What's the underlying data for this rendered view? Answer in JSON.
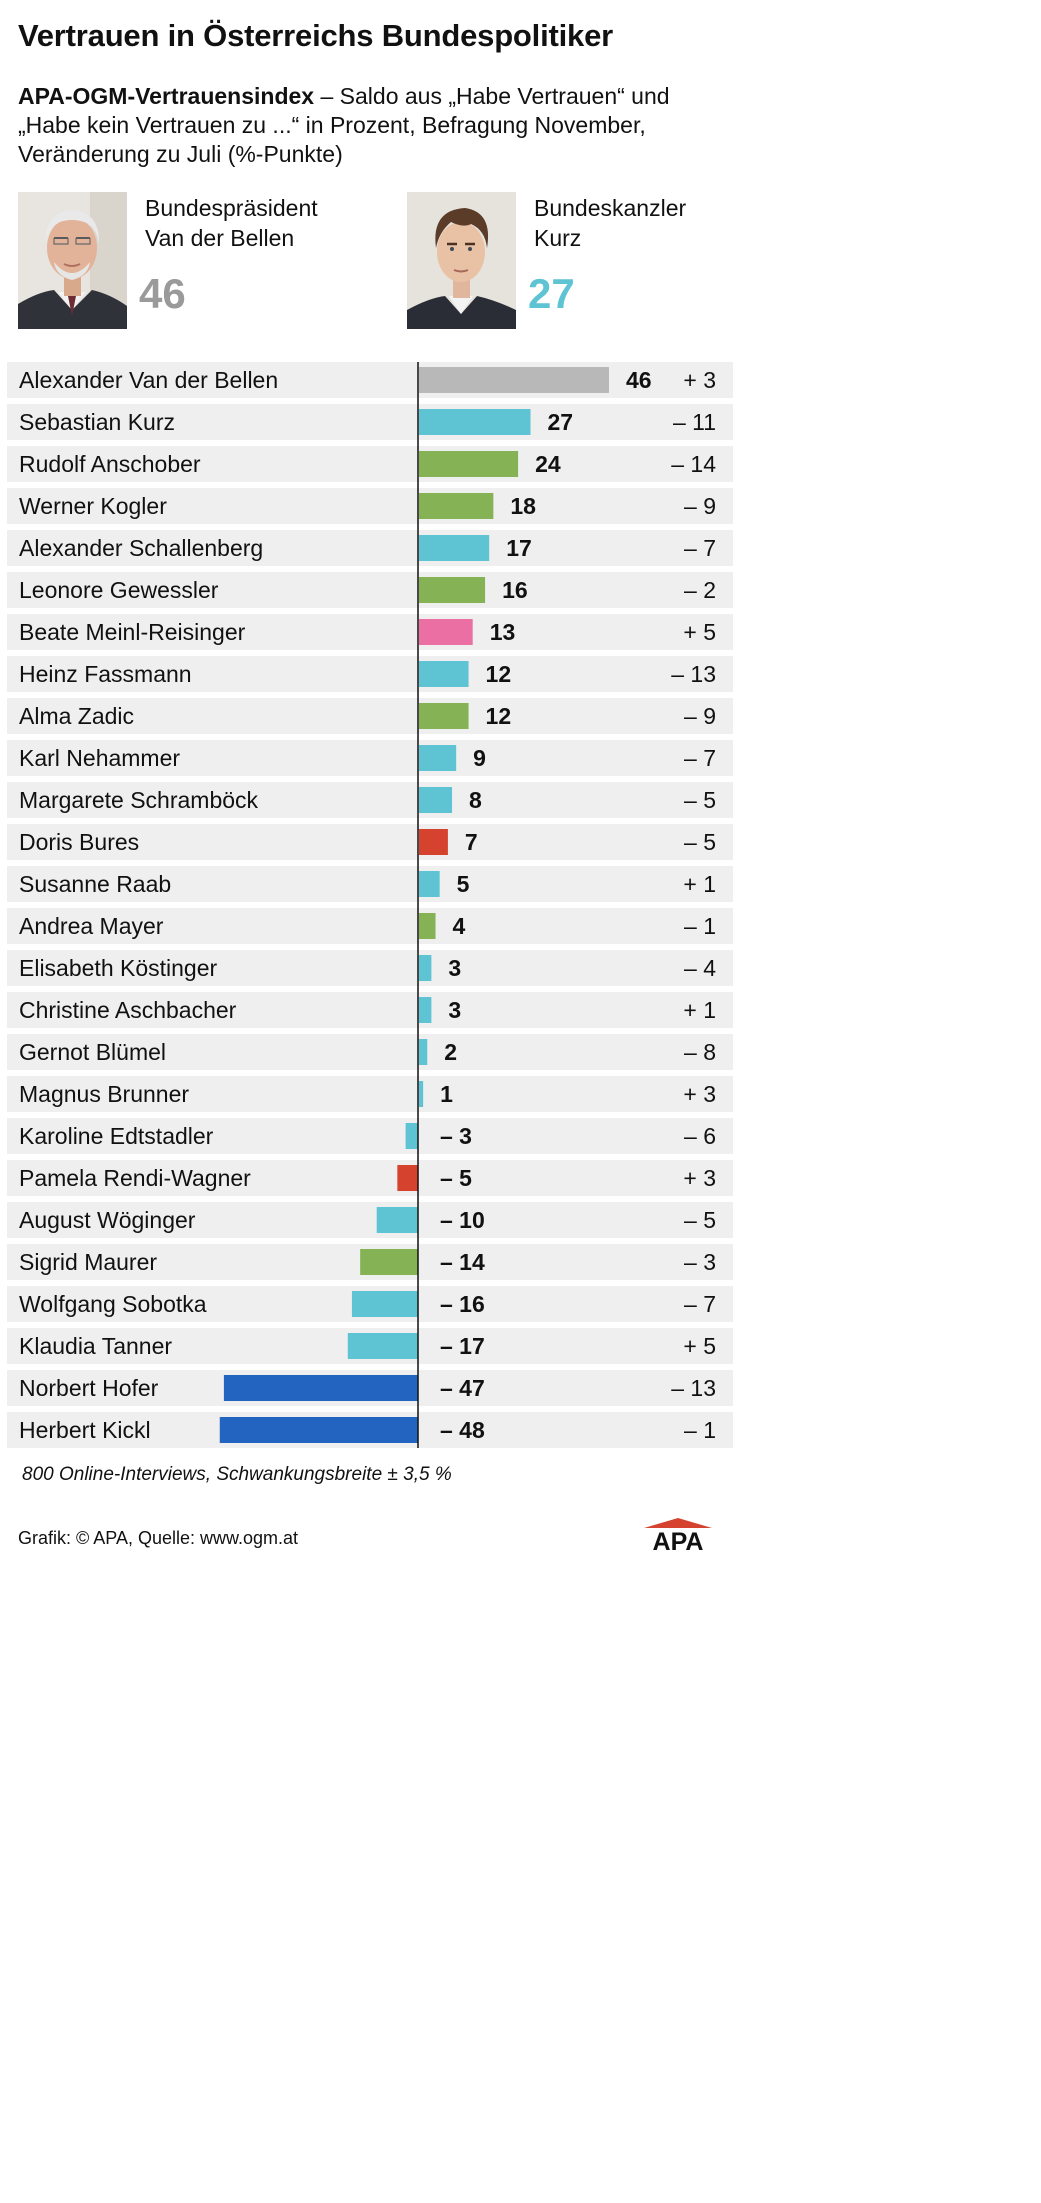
{
  "title": "Vertrauen in Österreichs Bundespolitiker",
  "subtitle": {
    "bold": "APA-OGM-Vertrauensindex",
    "text": " – Saldo aus „Habe Vertrauen“ und „Habe kein Vertrauen zu ...“ in Prozent, Befragung November, Veränderung zu Juli (%-Punkte)"
  },
  "featured": [
    {
      "role": "Bundespräsident",
      "name": "Van der Bellen",
      "value": "46",
      "color": "#9a9a9a",
      "icon": "portrait-photo"
    },
    {
      "role": "Bundeskanzler",
      "name": "Kurz",
      "value": "27",
      "color": "#5ec3d3",
      "icon": "portrait-photo"
    }
  ],
  "colors": {
    "grey": "#b8b8b8",
    "turquoise": "#5ec3d3",
    "green": "#84b255",
    "pink": "#ec6fa4",
    "red": "#d5432e",
    "blue": "#2264c0",
    "row_background": "#efeff0",
    "axis": "#111111"
  },
  "chart_data": {
    "type": "bar",
    "orientation": "horizontal",
    "xlim": [
      -48,
      46
    ],
    "rows": [
      {
        "name": "Alexander Van der Bellen",
        "value": 46,
        "label": "46",
        "change": "+ 3",
        "color": "grey"
      },
      {
        "name": "Sebastian Kurz",
        "value": 27,
        "label": "27",
        "change": "– 11",
        "color": "turquoise"
      },
      {
        "name": "Rudolf Anschober",
        "value": 24,
        "label": "24",
        "change": "– 14",
        "color": "green"
      },
      {
        "name": "Werner Kogler",
        "value": 18,
        "label": "18",
        "change": "– 9",
        "color": "green"
      },
      {
        "name": "Alexander Schallenberg",
        "value": 17,
        "label": "17",
        "change": "– 7",
        "color": "turquoise"
      },
      {
        "name": "Leonore Gewessler",
        "value": 16,
        "label": "16",
        "change": "– 2",
        "color": "green"
      },
      {
        "name": "Beate Meinl-Reisinger",
        "value": 13,
        "label": "13",
        "change": "+ 5",
        "color": "pink"
      },
      {
        "name": "Heinz Fassmann",
        "value": 12,
        "label": "12",
        "change": "– 13",
        "color": "turquoise"
      },
      {
        "name": "Alma Zadic",
        "value": 12,
        "label": "12",
        "change": "– 9",
        "color": "green"
      },
      {
        "name": "Karl Nehammer",
        "value": 9,
        "label": "9",
        "change": "– 7",
        "color": "turquoise"
      },
      {
        "name": "Margarete Schramböck",
        "value": 8,
        "label": "8",
        "change": "– 5",
        "color": "turquoise"
      },
      {
        "name": "Doris Bures",
        "value": 7,
        "label": "7",
        "change": "– 5",
        "color": "red"
      },
      {
        "name": "Susanne Raab",
        "value": 5,
        "label": "5",
        "change": "+ 1",
        "color": "turquoise"
      },
      {
        "name": "Andrea Mayer",
        "value": 4,
        "label": "4",
        "change": "– 1",
        "color": "green"
      },
      {
        "name": "Elisabeth Köstinger",
        "value": 3,
        "label": "3",
        "change": "– 4",
        "color": "turquoise"
      },
      {
        "name": "Christine Aschbacher",
        "value": 3,
        "label": "3",
        "change": "+ 1",
        "color": "turquoise"
      },
      {
        "name": "Gernot Blümel",
        "value": 2,
        "label": "2",
        "change": "– 8",
        "color": "turquoise"
      },
      {
        "name": "Magnus Brunner",
        "value": 1,
        "label": "1",
        "change": "+ 3",
        "color": "turquoise"
      },
      {
        "name": "Karoline Edtstadler",
        "value": -3,
        "label": "– 3",
        "change": "– 6",
        "color": "turquoise"
      },
      {
        "name": "Pamela Rendi-Wagner",
        "value": -5,
        "label": "– 5",
        "change": "+ 3",
        "color": "red"
      },
      {
        "name": "August Wöginger",
        "value": -10,
        "label": "– 10",
        "change": "– 5",
        "color": "turquoise"
      },
      {
        "name": "Sigrid Maurer",
        "value": -14,
        "label": "– 14",
        "change": "– 3",
        "color": "green"
      },
      {
        "name": "Wolfgang Sobotka",
        "value": -16,
        "label": "– 16",
        "change": "– 7",
        "color": "turquoise"
      },
      {
        "name": "Klaudia Tanner",
        "value": -17,
        "label": "– 17",
        "change": "+ 5",
        "color": "turquoise"
      },
      {
        "name": "Norbert Hofer",
        "value": -47,
        "label": "– 47",
        "change": "– 13",
        "color": "blue"
      },
      {
        "name": "Herbert Kickl",
        "value": -48,
        "label": "– 48",
        "change": "– 1",
        "color": "blue"
      }
    ]
  },
  "footnote": "800 Online-Interviews, Schwankungsbreite ± 3,5 %",
  "credit": "Grafik: © APA, Quelle: www.ogm.at",
  "logo_text": "APA"
}
